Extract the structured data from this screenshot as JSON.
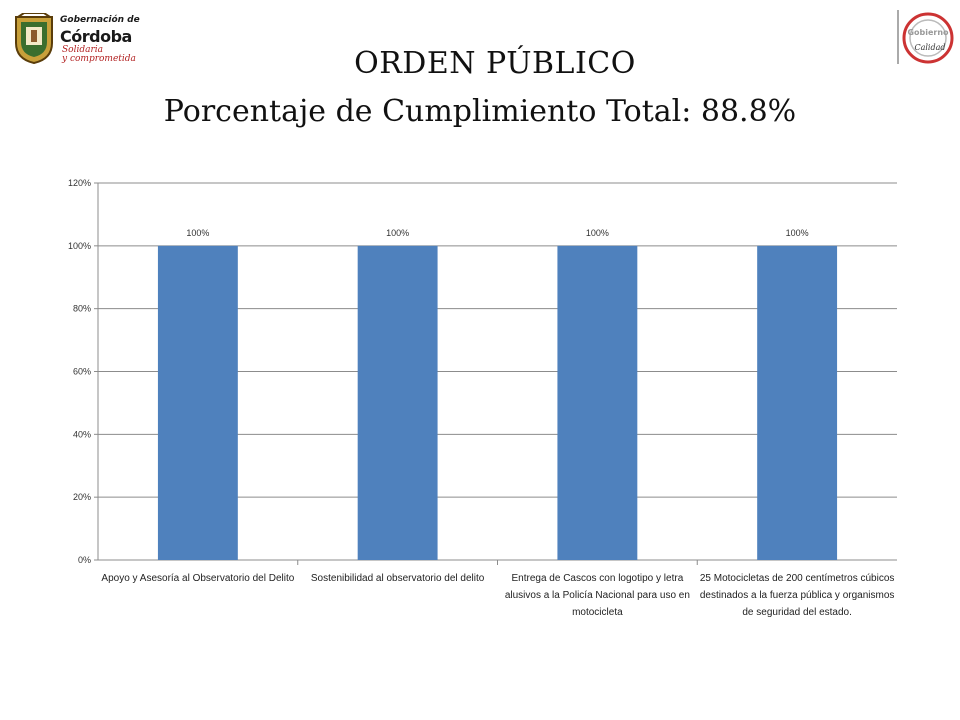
{
  "header": {
    "logo_left": {
      "line1": "Gobernación de",
      "line2": "Córdoba",
      "line3a": "Solidaria",
      "line3b": "y comprometida"
    },
    "logo_right": {
      "line1": "Gobierno",
      "line2": "Calidad"
    },
    "title": "ORDEN PÚBLICO",
    "subtitle": "Porcentaje de Cumplimiento Total: 88.8%"
  },
  "chart_data": {
    "type": "bar",
    "title": "",
    "xlabel": "",
    "ylabel": "",
    "categories": [
      "Apoyo y Asesoría al Observatorio del Delito",
      "Sostenibilidad al observatorio del delito",
      "Entrega de Cascos con logotipo y letra alusivos a la Policía Nacional para uso en motocicleta",
      "25 Motocicletas de 200  centímetros cúbicos destinados a la fuerza pública y organismos de seguridad del estado."
    ],
    "values": [
      100,
      100,
      100,
      100
    ],
    "data_labels": [
      "100%",
      "100%",
      "100%",
      "100%"
    ],
    "ylim": [
      0,
      120
    ],
    "yticks": [
      0,
      20,
      40,
      60,
      80,
      100,
      120
    ],
    "ytick_labels": [
      "0%",
      "20%",
      "40%",
      "60%",
      "80%",
      "100%",
      "120%"
    ],
    "grid": true,
    "bar_color": "#4F81BD",
    "legend": "none"
  }
}
